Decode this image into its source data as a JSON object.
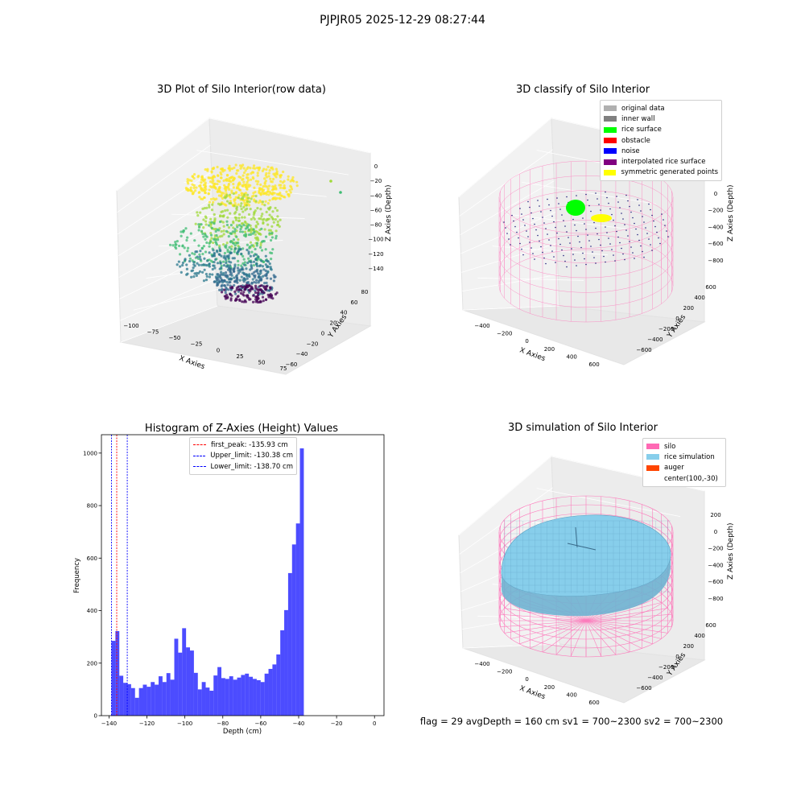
{
  "title": "PJPJR05 2025-12-29 08:27:44",
  "footer": "flag = 29  avgDepth = 160 cm  sv1 = 700~2300  sv2 = 700~2300",
  "panels": {
    "raw": {
      "title": "3D Plot of Silo Interior(row data)",
      "xlabel": "X Axies",
      "ylabel": "Y Axies",
      "zlabel": "Z Axies (Depth)",
      "x_ticks": [
        "−100",
        "−75",
        "−50",
        "−25",
        "0",
        "25",
        "50",
        "75"
      ],
      "y_ticks": [
        "−60",
        "−40",
        "−20",
        "0",
        "20",
        "40",
        "60",
        "80"
      ],
      "z_ticks": [
        "0",
        "−20",
        "−40",
        "−60",
        "−80",
        "−100",
        "−120",
        "−140"
      ]
    },
    "classify": {
      "title": "3D classify of Silo Interior",
      "xlabel": "X Axies",
      "ylabel": "Y Axies",
      "zlabel": "Z Axies (Depth)",
      "x_ticks": [
        "−400",
        "−200",
        "0",
        "200",
        "400",
        "600"
      ],
      "y_ticks": [
        "−600",
        "−400",
        "−200",
        "0",
        "200",
        "400",
        "600"
      ],
      "z_ticks": [
        "200",
        "0",
        "−200",
        "−400",
        "−600",
        "−800"
      ],
      "legend": [
        {
          "label": "original data",
          "color": "#b0b0b0"
        },
        {
          "label": "inner wall",
          "color": "#808080"
        },
        {
          "label": "rice surface",
          "color": "#00ff00"
        },
        {
          "label": "obstacle",
          "color": "#ff0000"
        },
        {
          "label": "noise",
          "color": "#0000ff"
        },
        {
          "label": "interpolated rice surface",
          "color": "#800080"
        },
        {
          "label": "symmetric generated points",
          "color": "#ffff00"
        }
      ]
    },
    "simulation": {
      "title": "3D simulation of Silo Interior",
      "xlabel": "X Axies",
      "ylabel": "Y Axies",
      "zlabel": "Z Axies (Depth)",
      "x_ticks": [
        "−400",
        "−200",
        "0",
        "200",
        "400",
        "600"
      ],
      "y_ticks": [
        "−600",
        "−400",
        "−200",
        "0",
        "200",
        "400",
        "600"
      ],
      "z_ticks": [
        "200",
        "0",
        "−200",
        "−400",
        "−600",
        "−800"
      ],
      "legend": [
        {
          "label": "silo",
          "color": "#ff69b4"
        },
        {
          "label": "rice simulation",
          "color": "#87ceeb"
        },
        {
          "label": "auger",
          "color": "#ff4500"
        },
        {
          "label": "center(100,-30)",
          "color": ""
        }
      ]
    }
  },
  "chart_data": [
    {
      "type": "bar",
      "title": "Histogram of Z-Axies (Height) Values",
      "xlabel": "Depth (cm)",
      "ylabel": "Frequency",
      "xlim": [
        -144,
        5
      ],
      "ylim": [
        0,
        1070
      ],
      "x_ticks": [
        -140,
        -120,
        -100,
        -80,
        -60,
        -40,
        -20,
        0
      ],
      "x_tick_labels": [
        "−140",
        "−120",
        "−100",
        "−80",
        "−60",
        "−40",
        "−20",
        "0"
      ],
      "y_ticks": [
        0,
        200,
        400,
        600,
        800,
        1000
      ],
      "bar_color": "#0000ff",
      "bin_edges_start": -138.7,
      "bin_width": 2.07,
      "values": [
        285,
        322,
        152,
        125,
        120,
        105,
        68,
        105,
        118,
        110,
        128,
        118,
        150,
        128,
        162,
        137,
        293,
        240,
        333,
        260,
        248,
        163,
        100,
        128,
        107,
        95,
        153,
        185,
        143,
        140,
        150,
        137,
        145,
        155,
        160,
        148,
        140,
        135,
        128,
        160,
        178,
        195,
        233,
        325,
        402,
        543,
        652,
        732,
        1018
      ],
      "lines": [
        {
          "label": "first_peak: -135.93 cm",
          "x": -135.93,
          "color": "#ff0000"
        },
        {
          "label": "Upper_limit: -130.38 cm",
          "x": -130.38,
          "color": "#0000ff"
        },
        {
          "label": "Lower_limit: -138.70 cm",
          "x": -138.7,
          "color": "#0000ff"
        }
      ],
      "legend_position": "top-center"
    }
  ]
}
